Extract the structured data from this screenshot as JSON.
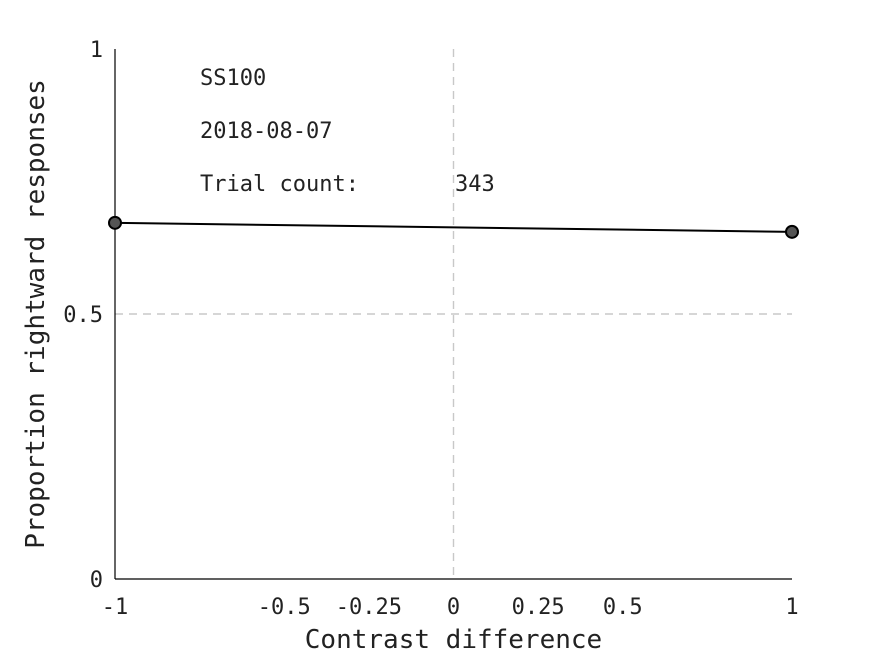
{
  "chart_data": {
    "type": "line",
    "title": "",
    "xlabel": "Contrast difference",
    "ylabel": "Proportion rightward responses",
    "xlim": [
      -1,
      1
    ],
    "ylim": [
      0,
      1
    ],
    "x_ticks": [
      -1,
      -0.5,
      -0.25,
      0,
      0.25,
      0.5,
      1
    ],
    "x_tick_labels": [
      "-1",
      "-0.5",
      "-0.25",
      "0",
      "0.25",
      "0.5",
      "1"
    ],
    "y_ticks": [
      0,
      0.5,
      1
    ],
    "y_tick_labels": [
      "0",
      "0.5",
      "1"
    ],
    "reference_lines": {
      "x": 0,
      "y": 0.5
    },
    "series": [
      {
        "x": [
          -1,
          1
        ],
        "y": [
          0.672,
          0.655
        ],
        "color": "#000000",
        "marker_color": "#555555"
      }
    ],
    "annotations": {
      "subject": "SS100",
      "date": "2018-08-07",
      "trial_count_label": "Trial count:",
      "trial_count_value": "343"
    }
  }
}
